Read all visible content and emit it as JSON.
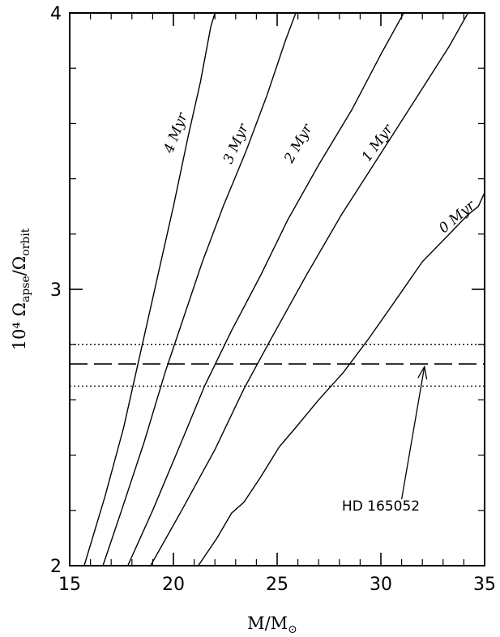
{
  "chart_data": {
    "type": "line",
    "xlabel": "M/M",
    "xlabel_sub_symbol": "⊙",
    "ylabel": "10⁴ Ω",
    "ylabel_sub1": "apse",
    "ylabel_mid": "/Ω",
    "ylabel_sub2": "orbit",
    "xlim": [
      15,
      35
    ],
    "ylim": [
      2,
      4
    ],
    "x_ticks": [
      15,
      20,
      25,
      30,
      35
    ],
    "x_tick_labels": [
      "15",
      "20",
      "25",
      "30",
      "35"
    ],
    "y_ticks": [
      2,
      3,
      4
    ],
    "y_tick_labels": [
      "2",
      "3",
      "4"
    ],
    "grid": false,
    "series": [
      {
        "name": "4 Myr",
        "x": [
          15.7,
          16.7,
          17.6,
          18.2,
          18.8,
          19.4,
          20.0,
          20.7,
          21.3,
          21.8,
          22.0
        ],
        "y": [
          2.0,
          2.25,
          2.5,
          2.7,
          2.9,
          3.1,
          3.3,
          3.55,
          3.75,
          3.95,
          4.0
        ]
      },
      {
        "name": "3 Myr",
        "x": [
          16.6,
          17.5,
          18.6,
          19.6,
          20.5,
          21.4,
          22.4,
          23.5,
          24.5,
          25.4,
          25.9
        ],
        "y": [
          2.0,
          2.2,
          2.45,
          2.7,
          2.9,
          3.1,
          3.3,
          3.5,
          3.7,
          3.9,
          4.0
        ]
      },
      {
        "name": "2 Myr",
        "x": [
          17.8,
          19.0,
          20.4,
          21.5,
          22.8,
          24.2,
          25.5,
          27.0,
          28.6,
          30.0,
          31.1
        ],
        "y": [
          2.0,
          2.2,
          2.45,
          2.65,
          2.85,
          3.05,
          3.25,
          3.45,
          3.65,
          3.85,
          4.0
        ]
      },
      {
        "name": "1 Myr",
        "x": [
          18.9,
          20.4,
          22.0,
          23.4,
          24.7,
          26.4,
          28.1,
          29.9,
          31.6,
          33.3,
          34.2
        ],
        "y": [
          2.0,
          2.2,
          2.42,
          2.64,
          2.82,
          3.05,
          3.27,
          3.48,
          3.68,
          3.88,
          4.0
        ]
      },
      {
        "name": "0 Myr",
        "x": [
          21.2,
          22.1,
          22.8,
          23.4,
          24.2,
          25.1,
          25.9,
          27.0,
          28.2,
          29.4,
          30.8,
          32.0,
          33.3,
          34.2,
          34.7,
          35.0
        ],
        "y": [
          2.0,
          2.1,
          2.19,
          2.23,
          2.32,
          2.43,
          2.5,
          2.6,
          2.7,
          2.82,
          2.97,
          3.1,
          3.2,
          3.27,
          3.3,
          3.35
        ]
      }
    ],
    "reference_lines": {
      "dashed": 2.73,
      "dotted": [
        2.8,
        2.65
      ]
    },
    "annotation": {
      "text": "HD 165052",
      "text_x": 30.0,
      "text_y": 2.2,
      "arrow_from": [
        31.0,
        2.24
      ],
      "arrow_to": [
        32.1,
        2.72
      ]
    },
    "curve_label_positions": [
      {
        "name": "4 Myr",
        "x": 20.3,
        "y": 3.56,
        "angle": -69
      },
      {
        "name": "3 Myr",
        "x": 23.2,
        "y": 3.52,
        "angle": -66
      },
      {
        "name": "2 Myr",
        "x": 26.2,
        "y": 3.52,
        "angle": -61
      },
      {
        "name": "1 Myr",
        "x": 30.0,
        "y": 3.52,
        "angle": -54
      },
      {
        "name": "0 Myr",
        "x": 33.8,
        "y": 3.25,
        "angle": -40
      }
    ]
  }
}
